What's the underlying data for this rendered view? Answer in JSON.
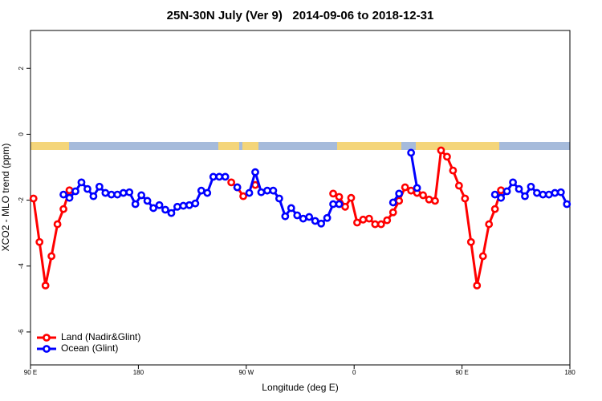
{
  "chart_data": {
    "type": "line",
    "title": "25N-30N July (Ver 9)   2014-09-06 to 2018-12-31",
    "x_label": "Longitude (deg E)",
    "y_label": "XCO2 - MLO trend (ppm)",
    "xlim": [
      90,
      540
    ],
    "xticks": [
      {
        "value": 90,
        "label": "90 E"
      },
      {
        "value": 180,
        "label": "180"
      },
      {
        "value": 270,
        "label": "90 W"
      },
      {
        "value": 360,
        "label": "0"
      },
      {
        "value": 450,
        "label": "90 E"
      },
      {
        "value": 540,
        "label": "180"
      }
    ],
    "ylim": [
      -7,
      3.15
    ],
    "yticks": [
      -6,
      -4,
      -2,
      0,
      2
    ],
    "legend": "bottom-left",
    "x": [
      92.5,
      97.5,
      102.5,
      107.5,
      112.5,
      117.5,
      122.5,
      127.5,
      132.5,
      137.5,
      142.5,
      147.5,
      152.5,
      157.5,
      162.5,
      167.5,
      172.5,
      177.5,
      182.5,
      187.5,
      192.5,
      197.5,
      202.5,
      207.5,
      212.5,
      217.5,
      222.5,
      227.5,
      232.5,
      237.5,
      242.5,
      247.5,
      252.5,
      257.5,
      262.5,
      267.5,
      272.5,
      277.5,
      282.5,
      287.5,
      292.5,
      297.5,
      302.5,
      307.5,
      312.5,
      317.5,
      322.5,
      327.5,
      332.5,
      337.5,
      342.5,
      347.5,
      352.5,
      357.5,
      362.5,
      367.5,
      372.5,
      377.5,
      382.5,
      387.5,
      392.5,
      397.5,
      402.5,
      407.5,
      412.5,
      417.5,
      422.5,
      427.5,
      432.5,
      437.5,
      442.5,
      447.5,
      452.5,
      457.5,
      462.5,
      467.5,
      472.5,
      477.5,
      482.5,
      487.5,
      492.5,
      497.5,
      502.5,
      507.5,
      512.5,
      517.5,
      522.5,
      527.5,
      532.5,
      537.5
    ],
    "series": [
      {
        "name": "Land (Nadir&Glint)",
        "color": "#ff0000",
        "values": [
          -1.95,
          -3.27,
          -4.59,
          -3.7,
          -2.73,
          -2.27,
          -1.7,
          null,
          null,
          null,
          null,
          null,
          null,
          null,
          null,
          null,
          null,
          null,
          null,
          null,
          null,
          null,
          null,
          null,
          null,
          null,
          null,
          null,
          null,
          null,
          null,
          null,
          null,
          -1.46,
          -1.61,
          -1.88,
          null,
          -1.54,
          null,
          null,
          null,
          null,
          null,
          null,
          null,
          null,
          null,
          null,
          null,
          null,
          -1.8,
          -1.9,
          -2.2,
          -1.93,
          -2.68,
          -2.59,
          -2.56,
          -2.73,
          -2.73,
          -2.61,
          -2.37,
          -2.02,
          -1.61,
          -1.71,
          -1.78,
          -1.85,
          -1.98,
          -2.02,
          -0.49,
          -0.68,
          -1.1,
          -1.56,
          -1.95,
          -3.27,
          -4.59,
          -3.7,
          -2.73,
          -2.27,
          -1.7,
          null,
          null,
          null,
          null,
          null,
          null,
          null,
          null,
          null,
          null,
          null
        ]
      },
      {
        "name": "Ocean (Glint)",
        "color": "#0000ff",
        "values": [
          null,
          null,
          null,
          null,
          null,
          -1.83,
          -1.93,
          -1.73,
          -1.46,
          -1.66,
          -1.88,
          -1.59,
          -1.78,
          -1.83,
          -1.83,
          -1.78,
          -1.76,
          -2.12,
          -1.85,
          -2.02,
          -2.24,
          -2.15,
          -2.29,
          -2.39,
          -2.2,
          -2.17,
          -2.15,
          -2.1,
          -1.71,
          -1.78,
          -1.29,
          -1.29,
          -1.29,
          null,
          -1.61,
          null,
          -1.78,
          -1.15,
          -1.76,
          -1.71,
          -1.71,
          -1.95,
          -2.49,
          -2.24,
          -2.46,
          -2.56,
          -2.51,
          -2.63,
          -2.71,
          -2.54,
          -2.12,
          -2.12,
          null,
          null,
          null,
          null,
          null,
          null,
          null,
          null,
          -2.07,
          -1.8,
          null,
          -0.56,
          -1.63,
          null,
          null,
          null,
          null,
          null,
          null,
          null,
          null,
          null,
          null,
          null,
          null,
          -1.83,
          -1.93,
          -1.73,
          -1.46,
          -1.66,
          -1.88,
          -1.59,
          -1.78,
          -1.83,
          -1.83,
          -1.78,
          -1.76,
          -2.12
        ]
      }
    ]
  }
}
